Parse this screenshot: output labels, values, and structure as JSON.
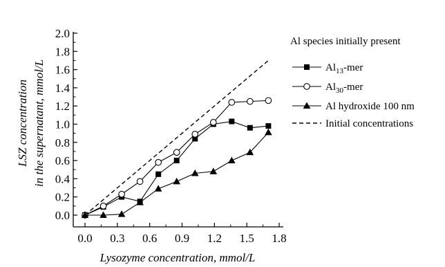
{
  "chart_data": {
    "type": "line",
    "xlabel": "Lysozyme concentration, mmol/L",
    "ylabel_lines": [
      "LSZ concentration",
      "in the supernatant, mmol/L"
    ],
    "xlim": [
      0.0,
      1.95
    ],
    "ylim": [
      -0.05,
      2.0
    ],
    "x_ticks": [
      "0.0",
      "0.3",
      "0.6",
      "0.9",
      "1.2",
      "1.5",
      "1.8"
    ],
    "y_ticks": [
      "0.0",
      "0.2",
      "0.4",
      "0.6",
      "0.8",
      "1.0",
      "1.2",
      "1.4",
      "1.6",
      "1.8",
      "2.0"
    ],
    "grid": false,
    "legend": {
      "title": "Al species initially present",
      "placement": "right"
    },
    "series": [
      {
        "name": "Al13-mer",
        "label_main": "Al",
        "label_sub": "13",
        "label_suffix": "-mer",
        "marker": "square-filled",
        "x": [
          0.0,
          0.17,
          0.34,
          0.51,
          0.68,
          0.85,
          1.02,
          1.19,
          1.36,
          1.53,
          1.7
        ],
        "y": [
          0.0,
          0.09,
          0.2,
          0.15,
          0.45,
          0.6,
          0.84,
          1.0,
          1.03,
          0.96,
          0.98
        ]
      },
      {
        "name": "Al30-mer",
        "label_main": "Al",
        "label_sub": "30",
        "label_suffix": "-mer",
        "marker": "circle-open",
        "x": [
          0.0,
          0.17,
          0.34,
          0.51,
          0.68,
          0.85,
          1.02,
          1.19,
          1.36,
          1.53,
          1.7
        ],
        "y": [
          0.0,
          0.1,
          0.23,
          0.37,
          0.58,
          0.69,
          0.89,
          1.02,
          1.24,
          1.25,
          1.26
        ]
      },
      {
        "name": "Al hydroxide 100 nm",
        "label_main": "Al hydroxide 100 nm",
        "label_sub": "",
        "label_suffix": "",
        "marker": "triangle-filled",
        "x": [
          0.0,
          0.17,
          0.34,
          0.51,
          0.68,
          0.85,
          1.02,
          1.19,
          1.36,
          1.53,
          1.7
        ],
        "y": [
          0.0,
          0.0,
          0.01,
          0.14,
          0.29,
          0.37,
          0.46,
          0.48,
          0.6,
          0.69,
          0.91
        ]
      },
      {
        "name": "Initial concentrations",
        "label_main": "Initial concentrations",
        "label_sub": "",
        "label_suffix": "",
        "marker": "none",
        "dashed": true,
        "x": [
          0.0,
          1.7
        ],
        "y": [
          0.0,
          1.7
        ]
      }
    ]
  }
}
